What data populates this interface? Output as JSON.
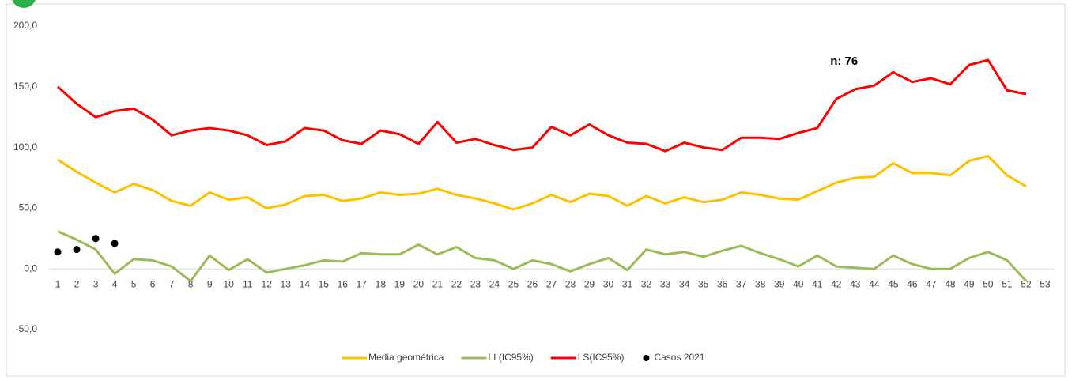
{
  "chart_data": {
    "type": "line",
    "annotation": "n: 76",
    "categories": [
      "1",
      "2",
      "3",
      "4",
      "5",
      "6",
      "7",
      "8",
      "9",
      "10",
      "11",
      "12",
      "13",
      "14",
      "15",
      "16",
      "17",
      "18",
      "19",
      "20",
      "21",
      "22",
      "23",
      "24",
      "25",
      "26",
      "27",
      "28",
      "29",
      "30",
      "31",
      "32",
      "33",
      "34",
      "35",
      "36",
      "37",
      "38",
      "39",
      "40",
      "41",
      "42",
      "43",
      "44",
      "45",
      "46",
      "47",
      "48",
      "49",
      "50",
      "51",
      "52",
      "53"
    ],
    "series": [
      {
        "name": "Media geométrica",
        "color": "#ffc000",
        "kind": "line",
        "values": [
          90,
          80,
          71,
          63,
          70,
          65,
          56,
          52,
          63,
          57,
          59,
          50,
          53,
          60,
          61,
          56,
          58,
          63,
          61,
          62,
          66,
          61,
          58,
          54,
          49,
          54,
          61,
          55,
          62,
          60,
          52,
          60,
          54,
          59,
          55,
          57,
          63,
          61,
          58,
          57,
          64,
          71,
          75,
          76,
          87,
          79,
          79,
          77,
          89,
          93,
          77,
          68,
          null
        ]
      },
      {
        "name": "LI (IC95%)",
        "color": "#9bbb59",
        "kind": "line",
        "values": [
          31,
          24,
          16,
          -4,
          8,
          7,
          2,
          -10,
          11,
          -1,
          8,
          -3,
          0,
          3,
          7,
          6,
          13,
          12,
          12,
          20,
          12,
          18,
          9,
          7,
          0,
          7,
          4,
          -2,
          4,
          9,
          -1,
          16,
          12,
          14,
          10,
          15,
          19,
          13,
          8,
          2,
          11,
          2,
          1,
          0,
          11,
          4,
          0,
          0,
          9,
          14,
          7,
          -10,
          null
        ]
      },
      {
        "name": "LS(IC95%)",
        "color": "#ff0000",
        "kind": "line",
        "values": [
          150,
          136,
          125,
          130,
          132,
          123,
          110,
          114,
          116,
          114,
          110,
          102,
          105,
          116,
          114,
          106,
          103,
          114,
          111,
          103,
          121,
          104,
          107,
          102,
          98,
          100,
          117,
          110,
          119,
          110,
          104,
          103,
          97,
          104,
          100,
          98,
          108,
          108,
          107,
          112,
          116,
          140,
          148,
          151,
          162,
          154,
          157,
          152,
          168,
          172,
          147,
          144,
          null
        ]
      },
      {
        "name": "Casos 2021",
        "color": "#000000",
        "kind": "scatter",
        "values": [
          14,
          16,
          25,
          21,
          null,
          null,
          null,
          null,
          null,
          null,
          null,
          null,
          null,
          null,
          null,
          null,
          null,
          null,
          null,
          null,
          null,
          null,
          null,
          null,
          null,
          null,
          null,
          null,
          null,
          null,
          null,
          null,
          null,
          null,
          null,
          null,
          null,
          null,
          null,
          null,
          null,
          null,
          null,
          null,
          null,
          null,
          null,
          null,
          null,
          null,
          null,
          null,
          null
        ]
      }
    ],
    "ylim": [
      -50,
      200
    ],
    "yticks": [
      {
        "value": -50,
        "label": "-50,0"
      },
      {
        "value": 0,
        "label": "0,0"
      },
      {
        "value": 50,
        "label": "50,0"
      },
      {
        "value": 100,
        "label": "100,0"
      },
      {
        "value": 150,
        "label": "150,0"
      },
      {
        "value": 200,
        "label": "200,0"
      }
    ],
    "grid": false,
    "legend": "bottom"
  }
}
